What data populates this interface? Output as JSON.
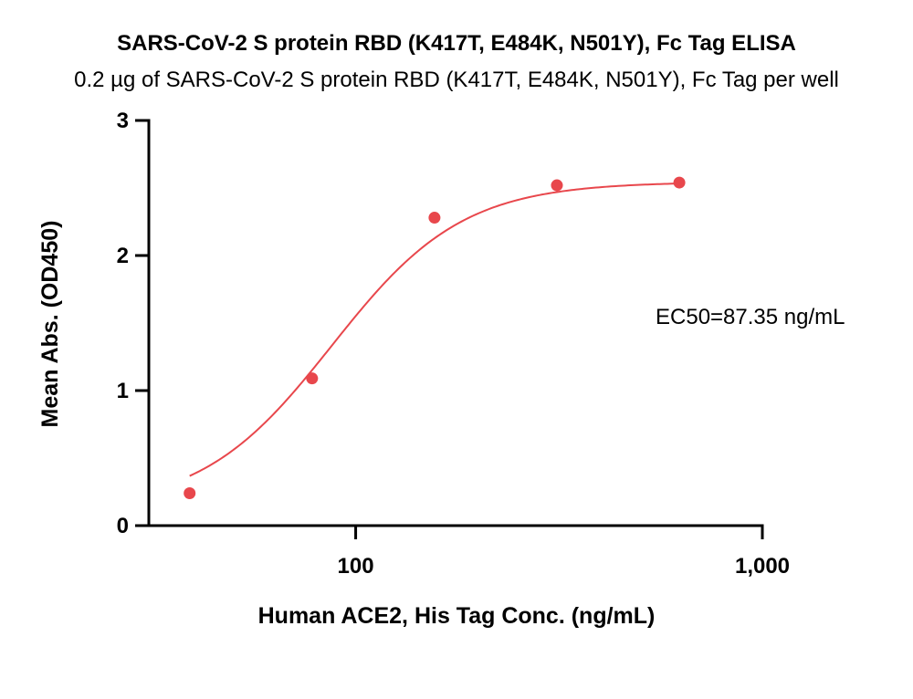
{
  "chart_data": {
    "type": "scatter",
    "title": "SARS-CoV-2 S protein RBD (K417T, E484K, N501Y), Fc Tag ELISA",
    "subtitle": "0.2 µg of SARS-CoV-2 S protein RBD (K417T, E484K, N501Y), Fc Tag per well",
    "xlabel": "Human ACE2, His Tag Conc. (ng/mL)",
    "ylabel": "Mean Abs. (OD450)",
    "x_scale": "log",
    "xlim": [
      31,
      1000
    ],
    "ylim": [
      0,
      3
    ],
    "x_ticks": [
      {
        "value": 100,
        "label": "100"
      },
      {
        "value": 1000,
        "label": "1,000"
      }
    ],
    "y_ticks": [
      {
        "value": 0,
        "label": "0"
      },
      {
        "value": 1,
        "label": "1"
      },
      {
        "value": 2,
        "label": "2"
      },
      {
        "value": 3,
        "label": "3"
      }
    ],
    "grid": false,
    "color": "#e8474c",
    "series": [
      {
        "x": [
          39.06,
          78.13,
          156.25,
          312.5,
          625
        ],
        "y": [
          0.24,
          1.09,
          2.28,
          2.52,
          2.54
        ],
        "fit": {
          "bottom": 0.12,
          "top": 2.545,
          "ec50": 87.35,
          "hill": 2.7
        }
      }
    ],
    "annotation": "EC50=87.35 ng/mL"
  }
}
